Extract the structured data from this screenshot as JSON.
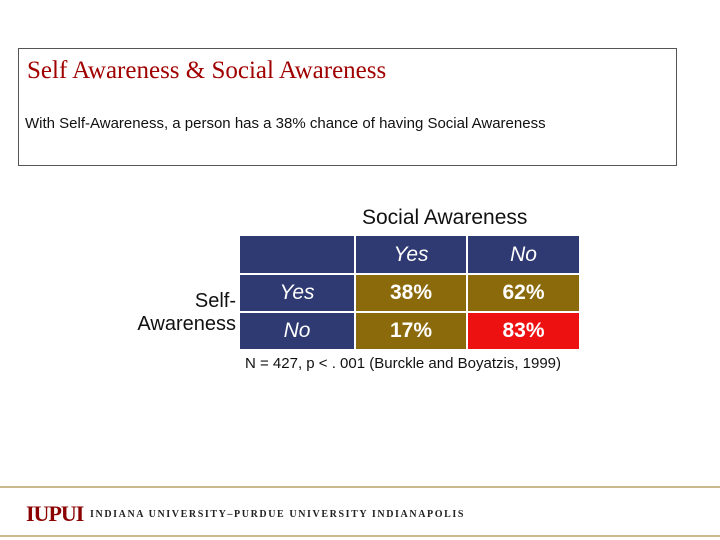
{
  "title": "Self Awareness & Social Awareness",
  "subtitle": "With Self-Awareness, a person has a 38% chance of having Social Awareness",
  "table": {
    "column_group_label": "Social Awareness",
    "row_group_label_line1": "Self-",
    "row_group_label_line2": "Awareness",
    "column_headers": [
      "Yes",
      "No"
    ],
    "rows": [
      {
        "label": "Yes",
        "values": [
          "38%",
          "62%"
        ]
      },
      {
        "label": "No",
        "values": [
          "17%",
          "83%"
        ]
      }
    ]
  },
  "note": "N = 427, p < . 001  (Burckle and Boyatzis, 1999)",
  "footer": {
    "logo_text": "IUPUI",
    "university_name": "INDIANA UNIVERSITY–PURDUE UNIVERSITY INDIANAPOLIS"
  },
  "colors": {
    "title": "#a00000",
    "header_fill": "#2f3a72",
    "cell_fill": "#8b6a0b",
    "highlight_fill": "#ee1111",
    "footer_rule": "#c9b98c"
  }
}
